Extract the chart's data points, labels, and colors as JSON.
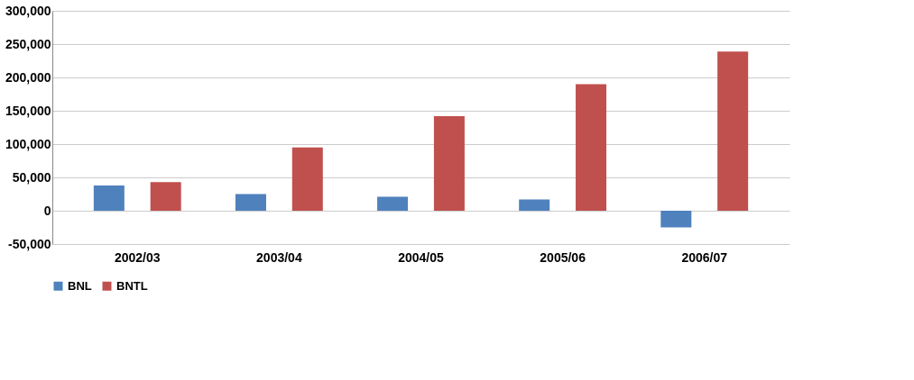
{
  "chart_data": {
    "type": "bar",
    "categories": [
      "2002/03",
      "2003/04",
      "2004/05",
      "2005/06",
      "2006/07"
    ],
    "series": [
      {
        "name": "BNL",
        "color": "#4f81bd",
        "values": [
          38000,
          25000,
          21000,
          17000,
          -25000
        ]
      },
      {
        "name": "BNTL",
        "color": "#c0504d",
        "values": [
          43000,
          95000,
          142000,
          190000,
          239000
        ]
      }
    ],
    "ylim": [
      -50000,
      300000
    ],
    "yticks": [
      {
        "value": -50000,
        "label": "-50,000"
      },
      {
        "value": 0,
        "label": "0"
      },
      {
        "value": 50000,
        "label": "50,000"
      },
      {
        "value": 100000,
        "label": "100,000"
      },
      {
        "value": 150000,
        "label": "150,000"
      },
      {
        "value": 200000,
        "label": "200,000"
      },
      {
        "value": 250000,
        "label": "250,000"
      },
      {
        "value": 300000,
        "label": "300,000"
      }
    ],
    "grid": "y",
    "legend": "bottom"
  }
}
